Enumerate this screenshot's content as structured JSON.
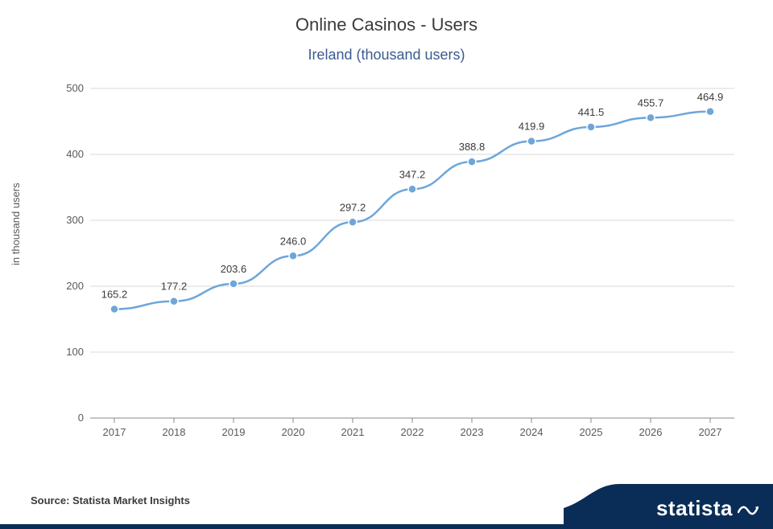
{
  "chart": {
    "type": "line",
    "title": "Online Casinos - Users",
    "subtitle": "Ireland (thousand users)",
    "title_fontsize": 22,
    "title_color": "#3a3a3a",
    "subtitle_fontsize": 18,
    "subtitle_color": "#3b5b8f",
    "y_axis_label": "in thousand users",
    "y_axis_label_fontsize": 13,
    "y_axis_label_color": "#5a5a5a",
    "categories": [
      "2017",
      "2018",
      "2019",
      "2020",
      "2021",
      "2022",
      "2023",
      "2024",
      "2025",
      "2026",
      "2027"
    ],
    "values": [
      165.2,
      177.2,
      203.6,
      246.0,
      297.2,
      347.2,
      388.8,
      419.9,
      441.5,
      455.7,
      464.9
    ],
    "value_labels": [
      "165.2",
      "177.2",
      "203.6",
      "246.0",
      "297.2",
      "347.2",
      "388.8",
      "419.9",
      "441.5",
      "455.7",
      "464.9"
    ],
    "ylim": [
      0,
      500
    ],
    "ytick_step": 100,
    "y_ticks": [
      "0",
      "100",
      "200",
      "300",
      "400",
      "500"
    ],
    "line_color": "#6ea6d9",
    "line_width": 2.5,
    "marker_fill": "#6ea6d9",
    "marker_stroke": "#ffffff",
    "marker_radius": 5,
    "grid_color": "#d9d9d9",
    "axis_color": "#8a8a8a",
    "tick_label_color": "#5a5a5a",
    "tick_label_fontsize": 13,
    "data_label_color": "#3a3a3a",
    "data_label_fontsize": 13,
    "background_color": "#ffffff"
  },
  "footer": {
    "source": "Source: Statista Market Insights",
    "logo_text": "statista",
    "logo_bg_color": "#0a2d57",
    "footer_bar_color": "#0a2d57"
  }
}
